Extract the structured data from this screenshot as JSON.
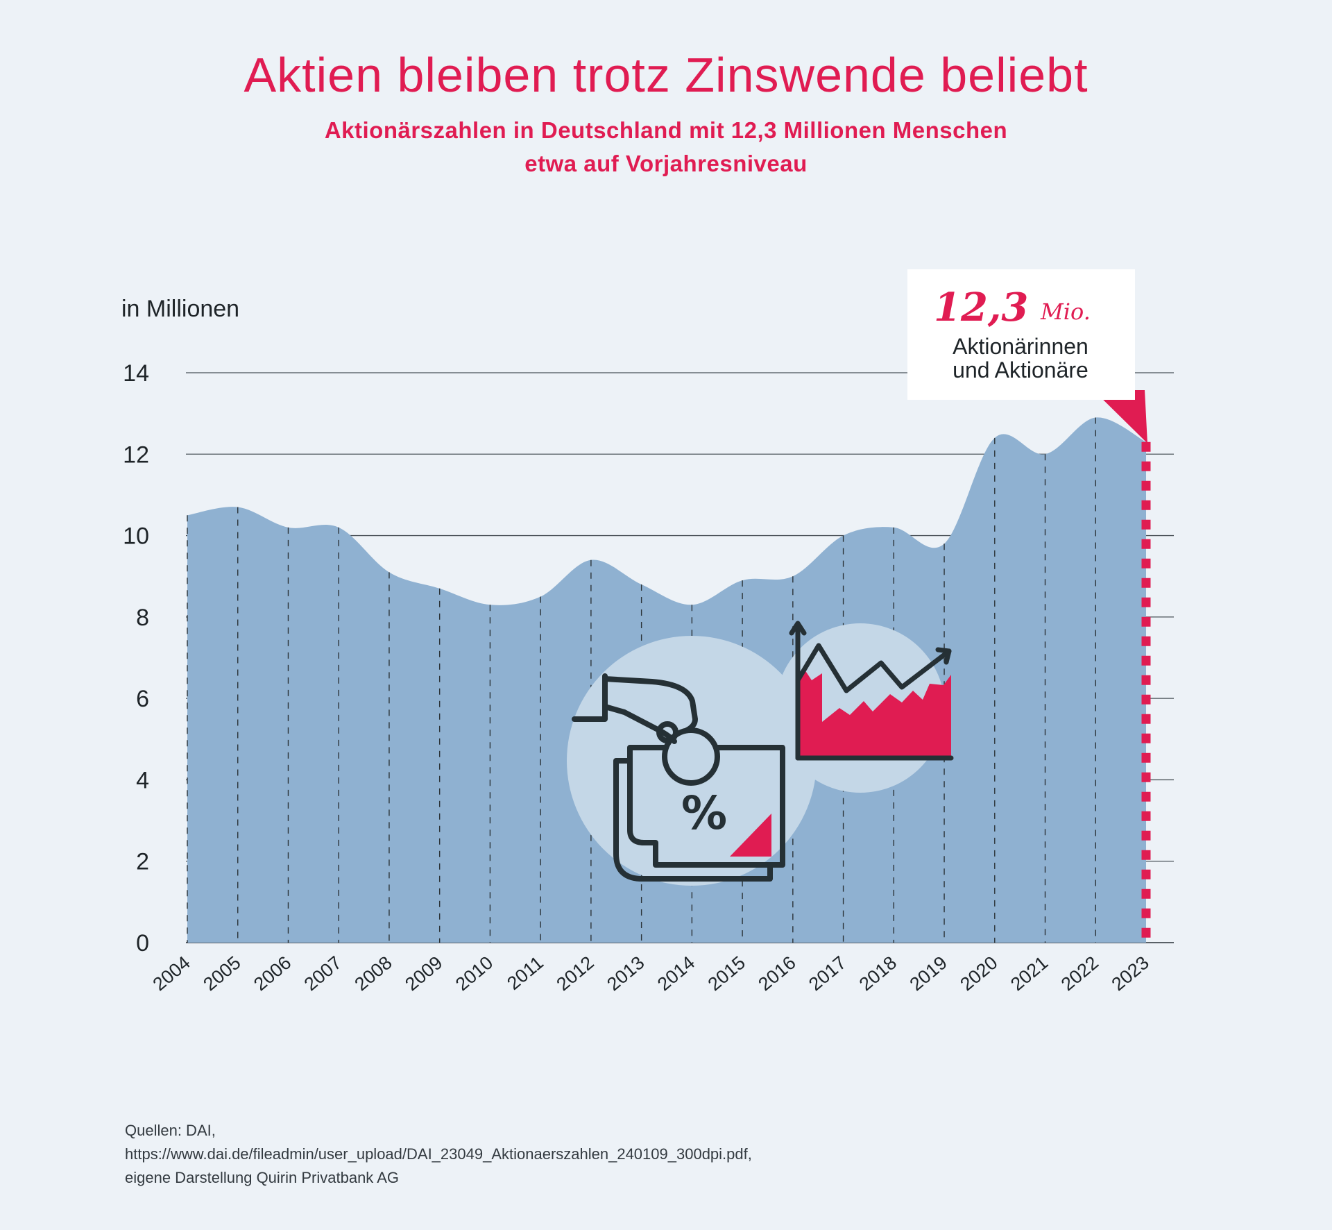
{
  "header": {
    "title": "Aktien bleiben trotz Zinswende beliebt",
    "subtitle_line1": "Aktionärszahlen in Deutschland mit 12,3 Millionen Menschen",
    "subtitle_line2": "etwa auf Vorjahresniveau"
  },
  "callout": {
    "value": "12,3",
    "unit": "Mio.",
    "line1": "Aktionärinnen",
    "line2": "und Aktionäre"
  },
  "source": {
    "line1": "Quellen: DAI,",
    "line2": "https://www.dai.de/fileadmin/user_upload/DAI_23049_Aktionaerszahlen_240109_300dpi.pdf,",
    "line3": "eigene Darstellung Quirin Privatbank AG"
  },
  "colors": {
    "background": "#edf2f7",
    "area": "#8fb1d1",
    "accent": "#e01c52",
    "icon_circle": "#c4d7e7",
    "icon_stroke": "#253035",
    "text": "#1e2428"
  },
  "icons": [
    "hand-coin-percent-icon",
    "rising-chart-icon"
  ],
  "chart_data": {
    "type": "area",
    "ylabel": "in Millionen",
    "ylim": [
      0,
      14
    ],
    "yticks": [
      0,
      2,
      4,
      6,
      8,
      10,
      12,
      14
    ],
    "grid": true,
    "x": [
      "2004",
      "2005",
      "2006",
      "2007",
      "2008",
      "2009",
      "2010",
      "2011",
      "2012",
      "2013",
      "2014",
      "2015",
      "2016",
      "2017",
      "2018",
      "2019",
      "2020",
      "2021",
      "2022",
      "2023"
    ],
    "values": [
      10.5,
      10.7,
      10.2,
      10.2,
      9.1,
      8.7,
      8.3,
      8.5,
      9.4,
      8.8,
      8.3,
      8.9,
      9.0,
      10.0,
      10.2,
      9.8,
      12.4,
      12.0,
      12.9,
      12.3
    ],
    "highlight": {
      "x": "2023",
      "value": 12.3
    }
  }
}
